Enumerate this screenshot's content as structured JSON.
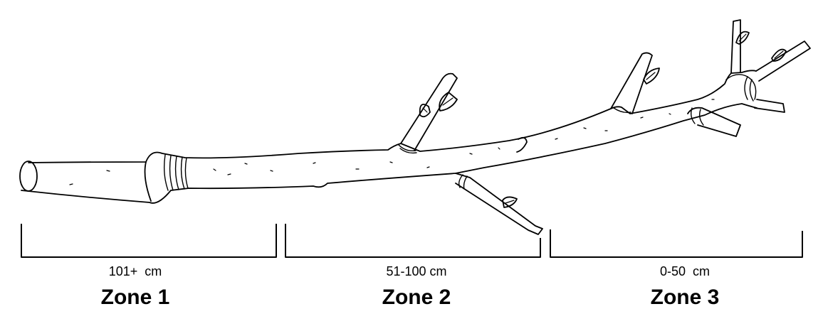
{
  "zones": [
    {
      "range": "101+  cm",
      "name": "Zone 1"
    },
    {
      "range": "51-100 cm",
      "name": "Zone 2"
    },
    {
      "range": "0-50  cm",
      "name": "Zone 3"
    }
  ],
  "colors": {
    "ink": "#000000",
    "background": "#ffffff"
  }
}
